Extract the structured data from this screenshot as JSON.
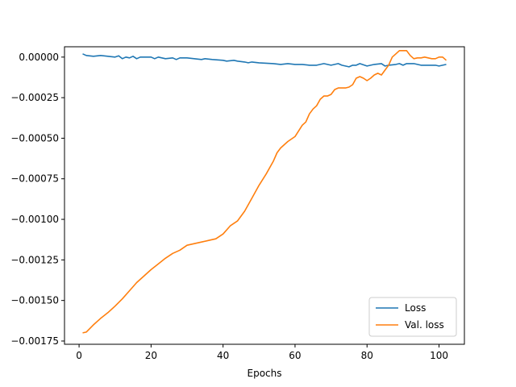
{
  "chart_data": {
    "type": "line",
    "title": "",
    "xlabel": "Epochs",
    "ylabel": "",
    "xlim": [
      -4.05,
      107.05
    ],
    "ylim": [
      -0.00177,
      6.37e-05
    ],
    "x_ticks": [
      0,
      20,
      40,
      60,
      80,
      100
    ],
    "x_tick_labels": [
      "0",
      "20",
      "40",
      "60",
      "80",
      "100"
    ],
    "y_ticks": [
      0.0,
      -0.00025,
      -0.0005,
      -0.00075,
      -0.001,
      -0.00125,
      -0.0015,
      -0.00175
    ],
    "y_tick_labels": [
      "0.00000",
      "−0.00025",
      "−0.00050",
      "−0.00075",
      "−0.00100",
      "−0.00125",
      "−0.00150",
      "−0.00175"
    ],
    "grid": false,
    "legend_position": "bottom-right",
    "series": [
      {
        "name": "Loss",
        "color": "#1f77b4",
        "points": [
          [
            1,
            2e-05
          ],
          [
            2,
            1e-05
          ],
          [
            4,
            5e-06
          ],
          [
            6,
            1e-05
          ],
          [
            8,
            5e-06
          ],
          [
            10,
            0.0
          ],
          [
            11,
            8e-06
          ],
          [
            12,
            -1e-05
          ],
          [
            13,
            0.0
          ],
          [
            14,
            -5e-06
          ],
          [
            15,
            5e-06
          ],
          [
            16,
            -1e-05
          ],
          [
            17,
            0.0
          ],
          [
            20,
            0.0
          ],
          [
            21,
            -1e-05
          ],
          [
            22,
            0.0
          ],
          [
            24,
            -1e-05
          ],
          [
            26,
            -5e-06
          ],
          [
            27,
            -1.5e-05
          ],
          [
            28,
            -5e-06
          ],
          [
            30,
            -5e-06
          ],
          [
            32,
            -1e-05
          ],
          [
            34,
            -1.5e-05
          ],
          [
            35,
            -1e-05
          ],
          [
            37,
            -1.5e-05
          ],
          [
            40,
            -2e-05
          ],
          [
            41,
            -2.5e-05
          ],
          [
            43,
            -2e-05
          ],
          [
            44,
            -2.5e-05
          ],
          [
            46,
            -3e-05
          ],
          [
            47,
            -3.5e-05
          ],
          [
            48,
            -3e-05
          ],
          [
            50,
            -3.5e-05
          ],
          [
            54,
            -4e-05
          ],
          [
            56,
            -4.5e-05
          ],
          [
            58,
            -4e-05
          ],
          [
            60,
            -4.5e-05
          ],
          [
            62,
            -4.5e-05
          ],
          [
            64,
            -5e-05
          ],
          [
            66,
            -5e-05
          ],
          [
            68,
            -4e-05
          ],
          [
            70,
            -5e-05
          ],
          [
            72,
            -4e-05
          ],
          [
            73,
            -5e-05
          ],
          [
            75,
            -6e-05
          ],
          [
            76,
            -5e-05
          ],
          [
            77,
            -5e-05
          ],
          [
            78,
            -4e-05
          ],
          [
            80,
            -5.5e-05
          ],
          [
            82,
            -4.5e-05
          ],
          [
            84,
            -4e-05
          ],
          [
            85,
            -5.5e-05
          ],
          [
            86,
            -5e-05
          ],
          [
            88,
            -4.5e-05
          ],
          [
            89,
            -4e-05
          ],
          [
            90,
            -5e-05
          ],
          [
            91,
            -4e-05
          ],
          [
            93,
            -4e-05
          ],
          [
            95,
            -5e-05
          ],
          [
            97,
            -5e-05
          ],
          [
            99,
            -5e-05
          ],
          [
            100,
            -5.5e-05
          ],
          [
            101,
            -5e-05
          ],
          [
            102,
            -4.5e-05
          ]
        ]
      },
      {
        "name": "Val. loss",
        "color": "#ff7f0e",
        "points": [
          [
            1,
            -0.0017
          ],
          [
            2,
            -0.001695
          ],
          [
            4,
            -0.00165
          ],
          [
            6,
            -0.00161
          ],
          [
            8,
            -0.001575
          ],
          [
            10,
            -0.001535
          ],
          [
            12,
            -0.00149
          ],
          [
            14,
            -0.00144
          ],
          [
            16,
            -0.00139
          ],
          [
            18,
            -0.00135
          ],
          [
            20,
            -0.00131
          ],
          [
            22,
            -0.001275
          ],
          [
            24,
            -0.00124
          ],
          [
            26,
            -0.00121
          ],
          [
            28,
            -0.00119
          ],
          [
            30,
            -0.00116
          ],
          [
            32,
            -0.00115
          ],
          [
            34,
            -0.00114
          ],
          [
            36,
            -0.00113
          ],
          [
            38,
            -0.00112
          ],
          [
            40,
            -0.00109
          ],
          [
            42,
            -0.00104
          ],
          [
            44,
            -0.00101
          ],
          [
            46,
            -0.00095
          ],
          [
            48,
            -0.00087
          ],
          [
            50,
            -0.00079
          ],
          [
            52,
            -0.00072
          ],
          [
            54,
            -0.00064
          ],
          [
            55,
            -0.00059
          ],
          [
            56,
            -0.00056
          ],
          [
            58,
            -0.00052
          ],
          [
            60,
            -0.00049
          ],
          [
            62,
            -0.00042
          ],
          [
            63,
            -0.0004
          ],
          [
            64,
            -0.00035
          ],
          [
            65,
            -0.00032
          ],
          [
            66,
            -0.0003
          ],
          [
            67,
            -0.00026
          ],
          [
            68,
            -0.00024
          ],
          [
            69,
            -0.00024
          ],
          [
            70,
            -0.00023
          ],
          [
            71,
            -0.0002
          ],
          [
            72,
            -0.00019
          ],
          [
            73,
            -0.00019
          ],
          [
            74,
            -0.00019
          ],
          [
            75,
            -0.000185
          ],
          [
            76,
            -0.00017
          ],
          [
            77,
            -0.00013
          ],
          [
            78,
            -0.00012
          ],
          [
            79,
            -0.00013
          ],
          [
            80,
            -0.000145
          ],
          [
            81,
            -0.00013
          ],
          [
            82,
            -0.00011
          ],
          [
            83,
            -0.0001
          ],
          [
            84,
            -0.00011
          ],
          [
            85,
            -8e-05
          ],
          [
            86,
            -5e-05
          ],
          [
            87,
            0.0
          ],
          [
            88,
            2e-05
          ],
          [
            89,
            4e-05
          ],
          [
            90,
            4e-05
          ],
          [
            91,
            4e-05
          ],
          [
            92,
            1e-05
          ],
          [
            93,
            -1e-05
          ],
          [
            94,
            -5e-06
          ],
          [
            95,
            -5e-06
          ],
          [
            96,
            0.0
          ],
          [
            97,
            -5e-06
          ],
          [
            98,
            -1e-05
          ],
          [
            99,
            -1e-05
          ],
          [
            100,
            0.0
          ],
          [
            101,
            0.0
          ],
          [
            102,
            -2e-05
          ]
        ]
      }
    ]
  }
}
